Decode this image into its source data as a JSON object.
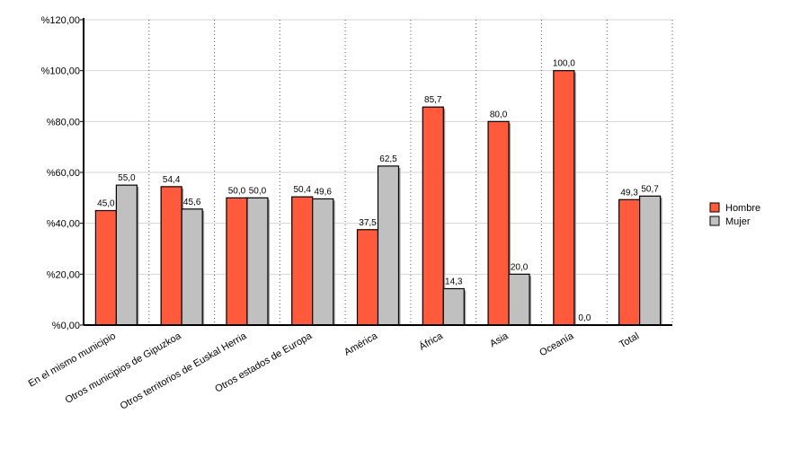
{
  "chart_data": {
    "type": "bar",
    "categories": [
      "En el mismo municipio",
      "Otros municipios de Gipuzkoa",
      "Otros territorios de Euskal Herria",
      "Otros estados de Europa",
      "América",
      "África",
      "Asia",
      "Oceanía",
      "Total"
    ],
    "series": [
      {
        "name": "Hombre",
        "color": "#ff5a3c",
        "values": [
          45.0,
          54.4,
          50.0,
          50.4,
          37.5,
          85.7,
          80.0,
          100.0,
          49.3
        ],
        "labels": [
          "45,0",
          "54,4",
          "50,0",
          "50,4",
          "37,5",
          "85,7",
          "80,0",
          "100,0",
          "49,3"
        ]
      },
      {
        "name": "Mujer",
        "color": "#c0c0c0",
        "values": [
          55.0,
          45.6,
          50.0,
          49.6,
          62.5,
          14.3,
          20.0,
          0.0,
          50.7
        ],
        "labels": [
          "55,0",
          "45,6",
          "50,0",
          "49,6",
          "62,5",
          "14,3",
          "20,0",
          "0,0",
          "50,7"
        ]
      }
    ],
    "ylim": [
      0,
      120
    ],
    "yticks": [
      0,
      20,
      40,
      60,
      80,
      100,
      120
    ],
    "ytick_labels": [
      "%0,00",
      "%20,00",
      "%40,00",
      "%60,00",
      "%80,00",
      "%100,00",
      "%120,00"
    ],
    "title": "",
    "xlabel": "",
    "ylabel": "",
    "grid": true,
    "legend_position": "right"
  }
}
